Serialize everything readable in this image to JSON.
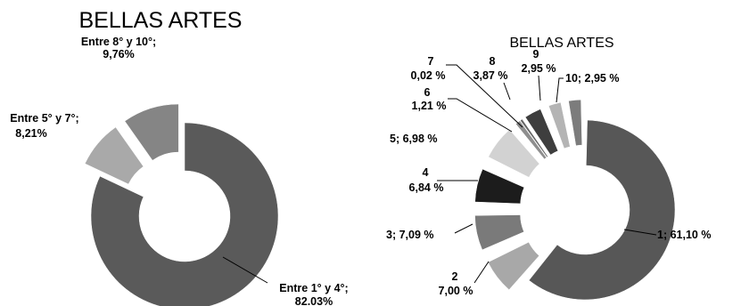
{
  "chart_data": [
    {
      "type": "donut",
      "title": "BELLAS ARTES",
      "exploded": true,
      "slices": [
        {
          "label": "Entre 1° y 4°;",
          "value_label": "82.03%",
          "value": 82.03,
          "color": "#5a5a5a"
        },
        {
          "label": "Entre 5° y 7°;",
          "value_label": "8,21%",
          "value": 8.21,
          "color": "#a9a9a9"
        },
        {
          "label": "Entre 8° y 10°;",
          "value_label": "9,76%",
          "value": 9.76,
          "color": "#858585"
        }
      ]
    },
    {
      "type": "donut",
      "title": "BELLAS ARTES",
      "exploded": true,
      "slices": [
        {
          "label": "1; 61,10 %",
          "value": 61.1,
          "color": "#575757"
        },
        {
          "label": "2",
          "value_label": "7,00 %",
          "value": 7.0,
          "color": "#a8a8a8"
        },
        {
          "label": "3; 7,09 %",
          "value": 7.09,
          "color": "#7a7a7a"
        },
        {
          "label": "4",
          "value_label": "6,84 %",
          "value": 6.84,
          "color": "#1c1c1c"
        },
        {
          "label": "5; 6,98 %",
          "value": 6.98,
          "color": "#d2d2d2"
        },
        {
          "label": "6",
          "value_label": "1,21 %",
          "value": 1.21,
          "color": "#8e8e8e"
        },
        {
          "label": "7",
          "value_label": "0,02 %",
          "value": 0.02,
          "color": "#666666"
        },
        {
          "label": "8",
          "value_label": "3,87 %",
          "value": 3.87,
          "color": "#3e3e3e"
        },
        {
          "label": "9",
          "value_label": "2,95 %",
          "value": 2.95,
          "color": "#b4b4b4"
        },
        {
          "label": "10; 2,95 %",
          "value": 2.95,
          "color": "#7c7c7c"
        }
      ]
    }
  ]
}
